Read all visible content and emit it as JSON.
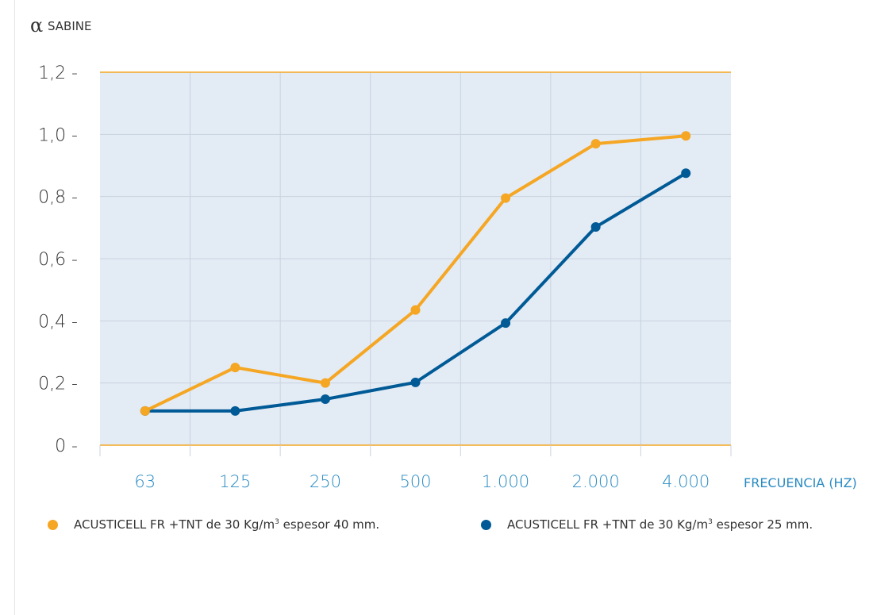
{
  "colors": {
    "orange": "#F5A623",
    "blue": "#005A96",
    "plot_bg": "#E3EBF5",
    "grid": "#C9D3DE",
    "tick_text_blue": "#2A8BC2"
  },
  "chart_data": {
    "type": "line",
    "ylabel_symbol": "α",
    "ylabel": "SABINE",
    "xlabel": "FRECUENCIA (HZ)",
    "categories": [
      "63",
      "125",
      "250",
      "500",
      "1.000",
      "2.000",
      "4.000"
    ],
    "ylim": [
      0,
      1.2
    ],
    "yticks": [
      {
        "value": 0,
        "label": "0 -"
      },
      {
        "value": 0.2,
        "label": "0,2 -"
      },
      {
        "value": 0.4,
        "label": "0,4 -"
      },
      {
        "value": 0.6,
        "label": "0,6 -"
      },
      {
        "value": 0.8,
        "label": "0,8 -"
      },
      {
        "value": 1.0,
        "label": "1,0 -"
      },
      {
        "value": 1.2,
        "label": "1,2 -"
      }
    ],
    "grid": true,
    "legend_position": "bottom",
    "series": [
      {
        "name": "ACUSTICELL FR +TNT de 30 Kg/m³ espesor 40 mm.",
        "color": "#F5A623",
        "values": [
          0.11,
          0.25,
          0.2,
          0.435,
          0.795,
          0.97,
          0.995
        ]
      },
      {
        "name": "ACUSTICELL FR +TNT de 30 Kg/m³ espesor 25 mm.",
        "color": "#005A96",
        "values": [
          0.11,
          0.11,
          0.148,
          0.202,
          0.393,
          0.702,
          0.875
        ]
      }
    ]
  },
  "legend": {
    "items": [
      {
        "text_before": "ACUSTICELL FR +TNT de 30 Kg/m",
        "sup": "3",
        "text_after": " espesor 40 mm.",
        "color": "#F5A623"
      },
      {
        "text_before": "ACUSTICELL FR +TNT de 30 Kg/m",
        "sup": "3",
        "text_after": " espesor 25 mm.",
        "color": "#005A96"
      }
    ]
  }
}
